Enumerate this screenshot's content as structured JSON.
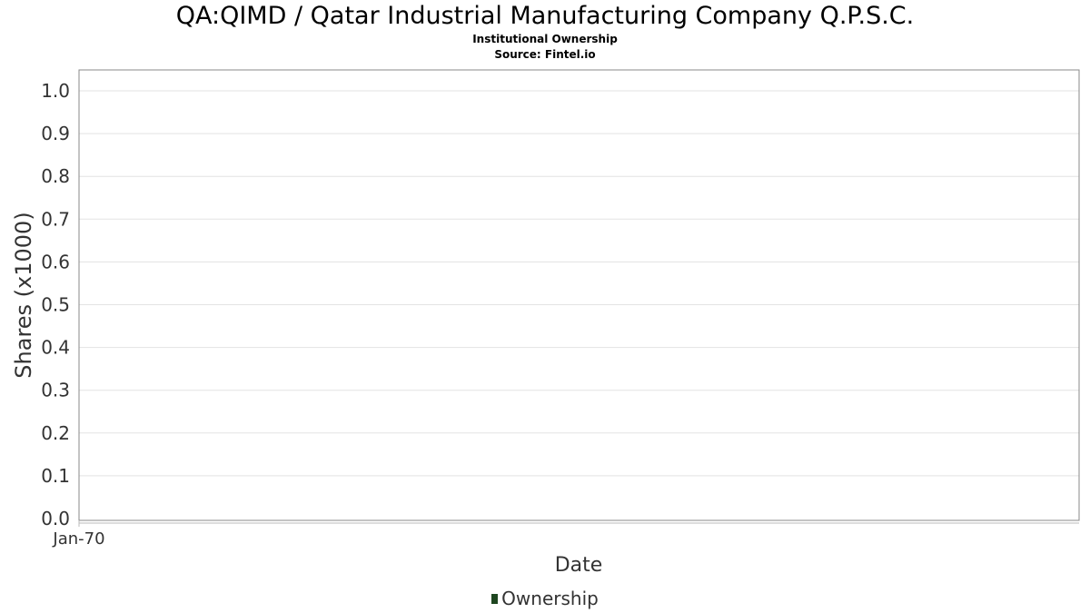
{
  "chart_data": {
    "type": "bar",
    "title": "QA:QIMD / Qatar Industrial Manufacturing Company Q.P.S.C.",
    "subtitle_lines": [
      "Institutional Ownership",
      "Source: Fintel.io"
    ],
    "xlabel": "Date",
    "ylabel": "Shares (x1000)",
    "x_ticks": [
      "Jan-70"
    ],
    "y_ticks": [
      "0.0",
      "0.1",
      "0.2",
      "0.3",
      "0.4",
      "0.5",
      "0.6",
      "0.7",
      "0.8",
      "0.9",
      "1.0"
    ],
    "ylim": [
      0,
      1.0
    ],
    "grid": true,
    "legend_position": "bottom-center",
    "series": [
      {
        "name": "Ownership",
        "color": "#1e4620",
        "values": []
      }
    ]
  }
}
